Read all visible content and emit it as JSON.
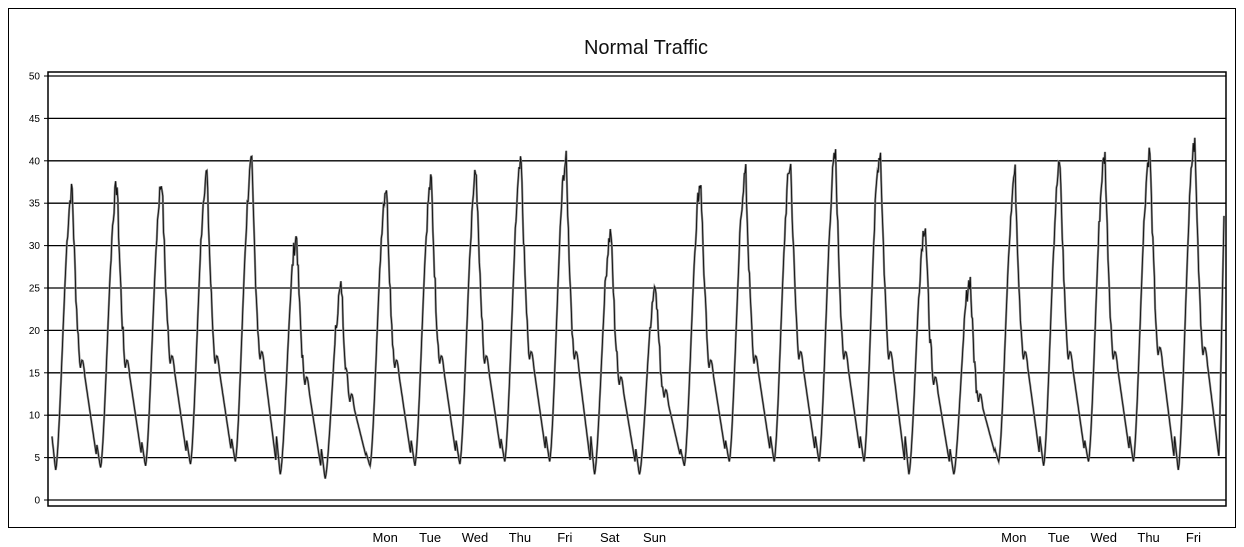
{
  "chart_data": {
    "type": "line",
    "title": "Normal Traffic",
    "xlabel": "",
    "ylabel": "",
    "ylim": [
      0,
      50
    ],
    "yticks": [
      0,
      5,
      10,
      15,
      20,
      25,
      30,
      35,
      40,
      45,
      50
    ],
    "grid": true,
    "legend": "none",
    "day_labels_week_1": [
      "Mon",
      "Tue",
      "Wed",
      "Thu",
      "Fri",
      "Sat",
      "Sun"
    ],
    "day_labels_week_2": [
      "Mon",
      "Tue",
      "Wed",
      "Thu",
      "Fri"
    ],
    "series": [
      {
        "daily_values": [
          {
            "min": 3.5,
            "max": 36.5,
            "evening": 15
          },
          {
            "min": 3.8,
            "max": 37.0,
            "evening": 15
          },
          {
            "min": 4.0,
            "max": 37.5,
            "evening": 15.5
          },
          {
            "min": 4.2,
            "max": 38.5,
            "evening": 15.5
          },
          {
            "min": 4.5,
            "max": 39.5,
            "evening": 16
          },
          {
            "min": 3.0,
            "max": 31.0,
            "evening": 13
          },
          {
            "min": 2.5,
            "max": 25.0,
            "evening": 11
          },
          {
            "min": 4.0,
            "max": 37.0,
            "evening": 15
          },
          {
            "min": 4.0,
            "max": 37.5,
            "evening": 15.5
          },
          {
            "min": 4.2,
            "max": 38.5,
            "evening": 15.5
          },
          {
            "min": 4.5,
            "max": 39.5,
            "evening": 16
          },
          {
            "min": 4.5,
            "max": 40.0,
            "evening": 16
          },
          {
            "min": 3.0,
            "max": 31.5,
            "evening": 13
          },
          {
            "min": 3.0,
            "max": 25.5,
            "evening": 11.5
          },
          {
            "min": 4.0,
            "max": 37.5,
            "evening": 15
          },
          {
            "min": 4.5,
            "max": 38.5,
            "evening": 15.5
          },
          {
            "min": 4.5,
            "max": 39.5,
            "evening": 16
          },
          {
            "min": 4.5,
            "max": 40.5,
            "evening": 16
          },
          {
            "min": 4.5,
            "max": 41.0,
            "evening": 16
          },
          {
            "min": 3.0,
            "max": 32.5,
            "evening": 13
          },
          {
            "min": 3.0,
            "max": 26.0,
            "evening": 11
          },
          {
            "min": 4.5,
            "max": 38.5,
            "evening": 16
          },
          {
            "min": 4.0,
            "max": 39.5,
            "evening": 16
          },
          {
            "min": 4.5,
            "max": 40.5,
            "evening": 16
          },
          {
            "min": 4.5,
            "max": 41.0,
            "evening": 16.5
          },
          {
            "min": 3.5,
            "max": 42.0,
            "evening": 16.5
          }
        ],
        "final_point": 33.5
      }
    ]
  }
}
